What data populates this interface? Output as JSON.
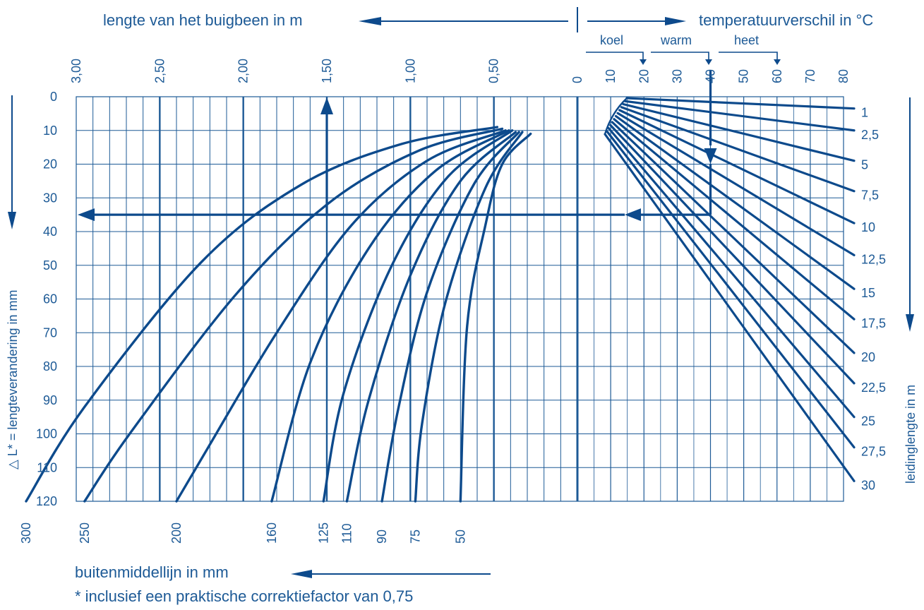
{
  "colors": {
    "ink": "#0d4a8c",
    "grid": "#1d5a96",
    "text": "#1d5a96",
    "background": "#ffffff"
  },
  "header": {
    "left_title": "lengte van het buigbeen in m",
    "right_title": "temperatuurverschil in °C",
    "koel": "koel",
    "warm": "warm",
    "heet": "heet"
  },
  "footer": {
    "bottom_axis_label": "buitenmiddellijn in mm",
    "footnote": "* inclusief een praktische correktiefactor van 0,75"
  },
  "chart_data": {
    "type": "line",
    "title": "",
    "y_axis": {
      "label": "△ L* = lengteverandering in mm",
      "range": [
        0,
        120
      ],
      "ticks": [
        "0",
        "10",
        "20",
        "30",
        "40",
        "50",
        "60",
        "70",
        "80",
        "90",
        "100",
        "110",
        "120"
      ],
      "direction": "down"
    },
    "top_left_axis": {
      "label": "lengte van het buigbeen in m",
      "range": [
        0,
        3.0
      ],
      "ticks": [
        "3,00",
        "2,50",
        "2,00",
        "1,50",
        "1,00",
        "0,50",
        "0"
      ],
      "direction": "left"
    },
    "top_right_axis": {
      "label": "temperatuurverschil in °C",
      "range": [
        0,
        80
      ],
      "ticks": [
        "10",
        "20",
        "30",
        "40",
        "50",
        "60",
        "70",
        "80"
      ],
      "groups": [
        {
          "name": "koel",
          "value": 20
        },
        {
          "name": "warm",
          "value": 40
        },
        {
          "name": "heet",
          "value": 60
        }
      ]
    },
    "right_axis": {
      "label": "leidinglengte in m",
      "ticks": [
        "1",
        "2,5",
        "5",
        "7,5",
        "10",
        "12,5",
        "15",
        "17,5",
        "20",
        "22,5",
        "25",
        "27,5",
        "30"
      ]
    },
    "bottom_axis": {
      "label": "buitenmiddellijn in mm",
      "ticks": [
        "300",
        "250",
        "200",
        "160",
        "125",
        "110",
        "90",
        "75",
        "50"
      ]
    },
    "pipe_length_lines": [
      {
        "name": "1",
        "y_at_right": 3.5
      },
      {
        "name": "2,5",
        "y_at_right": 10
      },
      {
        "name": "5",
        "y_at_right": 19
      },
      {
        "name": "7,5",
        "y_at_right": 28
      },
      {
        "name": "10",
        "y_at_right": 37.5
      },
      {
        "name": "12,5",
        "y_at_right": 47
      },
      {
        "name": "15",
        "y_at_right": 57
      },
      {
        "name": "17,5",
        "y_at_right": 66
      },
      {
        "name": "20",
        "y_at_right": 76
      },
      {
        "name": "22,5",
        "y_at_right": 85
      },
      {
        "name": "25",
        "y_at_right": 95
      },
      {
        "name": "27,5",
        "y_at_right": 104
      },
      {
        "name": "30",
        "y_at_right": 114
      }
    ],
    "diameter_curves": [
      {
        "name": "300",
        "points": [
          [
            0.48,
            9
          ],
          [
            1.05,
            14
          ],
          [
            1.65,
            26
          ],
          [
            2.25,
            49
          ],
          [
            2.95,
            92
          ],
          [
            3.3,
            120
          ]
        ]
      },
      {
        "name": "250",
        "points": [
          [
            0.45,
            9.5
          ],
          [
            0.95,
            16
          ],
          [
            1.5,
            32
          ],
          [
            2.05,
            59
          ],
          [
            2.68,
            100
          ],
          [
            2.95,
            120
          ]
        ]
      },
      {
        "name": "200",
        "points": [
          [
            0.43,
            10
          ],
          [
            0.9,
            19
          ],
          [
            1.35,
            38
          ],
          [
            1.8,
            70
          ],
          [
            2.21,
            104
          ],
          [
            2.4,
            120
          ]
        ]
      },
      {
        "name": "160",
        "points": [
          [
            0.41,
            10
          ],
          [
            0.85,
            22
          ],
          [
            1.25,
            45
          ],
          [
            1.6,
            79
          ],
          [
            1.83,
            120
          ]
        ]
      },
      {
        "name": "125",
        "points": [
          [
            0.39,
            10
          ],
          [
            0.78,
            24
          ],
          [
            1.12,
            51
          ],
          [
            1.4,
            88
          ],
          [
            1.52,
            120
          ]
        ]
      },
      {
        "name": "110",
        "points": [
          [
            0.37,
            10.5
          ],
          [
            0.7,
            25
          ],
          [
            1.0,
            53
          ],
          [
            1.25,
            90
          ],
          [
            1.38,
            120
          ]
        ]
      },
      {
        "name": "90",
        "points": [
          [
            0.35,
            10.5
          ],
          [
            0.62,
            26
          ],
          [
            0.9,
            58
          ],
          [
            1.07,
            92
          ],
          [
            1.17,
            120
          ]
        ]
      },
      {
        "name": "75",
        "points": [
          [
            0.33,
            10.5
          ],
          [
            0.55,
            27
          ],
          [
            0.79,
            61
          ],
          [
            0.93,
            97
          ],
          [
            0.97,
            120
          ]
        ]
      },
      {
        "name": "50",
        "points": [
          [
            0.28,
            11
          ],
          [
            0.45,
            20
          ],
          [
            0.55,
            38
          ],
          [
            0.66,
            68
          ],
          [
            0.7,
            120
          ]
        ]
      }
    ],
    "example_path": {
      "temperature": 40,
      "pipe_length": "12,5",
      "delta_l": 35,
      "diameter": "125",
      "leg_length": 1.5
    },
    "grid": true
  }
}
